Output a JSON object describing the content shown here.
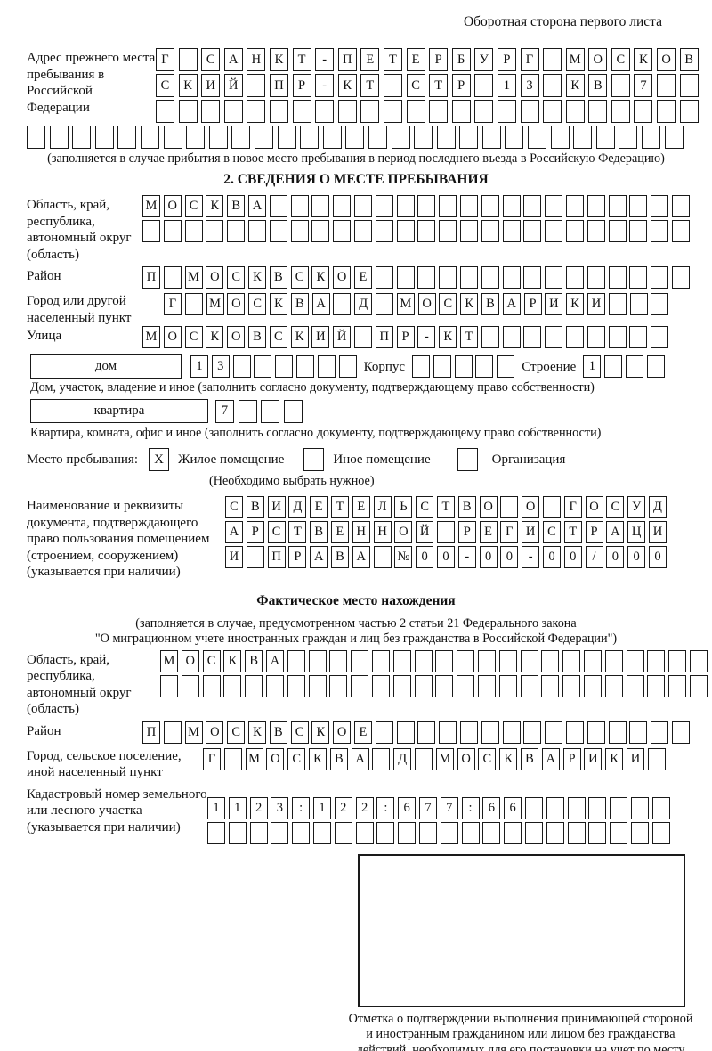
{
  "header_note": "Оборотная сторона первого листа",
  "prev_address": {
    "label": "Адрес прежнего места пребывания в Российской Федерации",
    "row1": {
      "text": "Г САНКТ-ПЕТЕРБУРГ МОСКОВ",
      "count": 24
    },
    "row2": {
      "text": "СКИЙ ПР-КТ СТР 13 КВ 7",
      "count": 24
    },
    "row3": {
      "text": "",
      "count": 24
    },
    "row4": {
      "text": "",
      "count": 29
    },
    "note": "(заполняется в случае прибытия в новое место пребывания в период последнего въезда в Российскую Федерацию)"
  },
  "section2": {
    "title": "2. СВЕДЕНИЯ О МЕСТЕ ПРЕБЫВАНИЯ",
    "region_label": "Область, край, республика, автономный округ (область)",
    "region_row1": {
      "text": "МОСКВА",
      "count": 26
    },
    "region_row2": {
      "text": "",
      "count": 26
    },
    "district_label": "Район",
    "district_row": {
      "text": "П МОСКВСКОЕ",
      "count": 26
    },
    "city_label": "Город или другой населенный пункт",
    "city_row": {
      "text": "Г МОСКВА Д МОСКВАРИКИ",
      "count": 24
    },
    "street_label": "Улица",
    "street_row": {
      "text": "МОСКОВСКИЙ ПР-КТ",
      "count": 25
    },
    "house_box_label": "дом",
    "house_row": {
      "text": "13",
      "count": 8
    },
    "korpus_label": "Корпус",
    "korpus_row": {
      "text": "",
      "count": 5
    },
    "stroenie_label": "Строение",
    "stroenie_row": {
      "text": "1",
      "count": 4
    },
    "house_note": "Дом, участок, владение и иное (заполнить согласно документу, подтверждающему право собственности)",
    "apartment_box_label": "квартира",
    "apartment_row": {
      "text": "7",
      "count": 4
    },
    "apartment_note": "Квартира, комната, офис и иное (заполнить согласно документу, подтверждающему право собственности)",
    "stay_label": "Место пребывания:",
    "stay_options": [
      {
        "label": "Жилое помещение",
        "mark": "X"
      },
      {
        "label": "Иное помещение",
        "mark": ""
      },
      {
        "label": "Организация",
        "mark": ""
      }
    ],
    "stay_note": "(Необходимо выбрать нужное)",
    "doc_label": "Наименование и реквизиты документа, подтверждающего право пользования помещением (строением, сооружением) (указывается при наличии)",
    "doc_row1": {
      "text": "СВИДЕТЕЛЬСТВО О ГОСУД",
      "count": 21
    },
    "doc_row2": {
      "text": "АРСТВЕННОЙ РЕГИСТРАЦИ",
      "count": 21
    },
    "doc_row3": {
      "text": "И ПРАВА №00-00-00/000",
      "count": 21
    }
  },
  "actual_location": {
    "title": "Фактическое место нахождения",
    "note1": "(заполняется в случае, предусмотренном частью 2 статьи 21 Федерального закона",
    "note2": "\"О миграционном учете иностранных граждан и лиц без гражданства в Российской Федерации\")",
    "region_label": "Область, край, республика, автономный округ (область)",
    "region_row1": {
      "text": "МОСКВА",
      "count": 26
    },
    "region_row2": {
      "text": "",
      "count": 26
    },
    "district_label": "Район",
    "district_row": {
      "text": "П МОСКВСКОЕ",
      "count": 26
    },
    "city_label": "Город, сельское поселение, иной населенный пункт",
    "city_row": {
      "text": "Г МОСКВА Д МОСКВАРИКИ",
      "count": 22
    },
    "cadastral_label": "Кадастровый номер земельного или лесного участка (указывается при наличии)",
    "cadastral_row1": {
      "text": "1123:122:677:66",
      "count": 22
    },
    "cadastral_row2": {
      "text": "",
      "count": 22
    }
  },
  "confirmation_caption": "Отметка о подтверждении выполнения принимающей стороной и иностранным гражданином или лицом без гражданства действий, необходимых для его постановки на учет по месту пребывания"
}
